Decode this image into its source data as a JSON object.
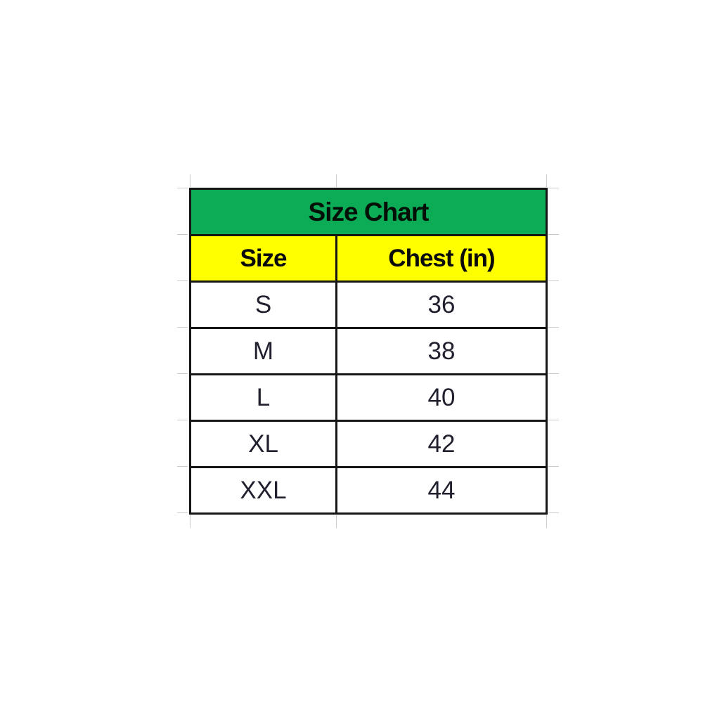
{
  "chart_data": {
    "type": "table",
    "title": "Size Chart",
    "columns": [
      "Size",
      "Chest (in)"
    ],
    "rows": [
      [
        "S",
        "36"
      ],
      [
        "M",
        "38"
      ],
      [
        "L",
        "40"
      ],
      [
        "XL",
        "42"
      ],
      [
        "XXL",
        "44"
      ]
    ]
  },
  "colors": {
    "title_background": "#0bac55",
    "header_background": "#ffff00",
    "border": "#161616",
    "header_text": "#0a0a0a",
    "body_text": "#20202e",
    "gridline_stub": "#cacaca"
  }
}
